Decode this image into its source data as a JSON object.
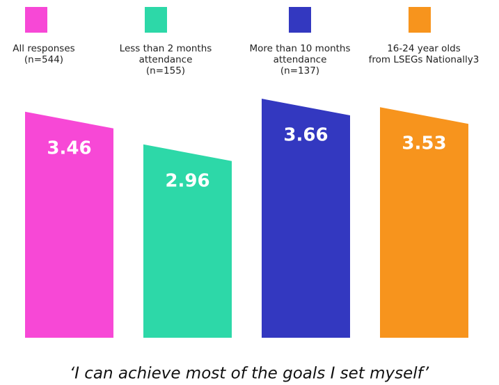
{
  "chart_data": {
    "type": "bar",
    "title": "‘I can achieve most of the goals I set myself’",
    "categories": [
      [
        "All responses",
        "(n=544)"
      ],
      [
        "Less than 2 months",
        "attendance",
        "(n=155)"
      ],
      [
        "More than 10 months",
        "attendance",
        "(n=137)"
      ],
      [
        "16-24 year olds",
        "from LSEGs Nationally3"
      ]
    ],
    "values": [
      3.46,
      2.96,
      3.66,
      3.53
    ],
    "colors": [
      "#f748d6",
      "#2dd8a8",
      "#3338c0",
      "#f7941d"
    ]
  }
}
